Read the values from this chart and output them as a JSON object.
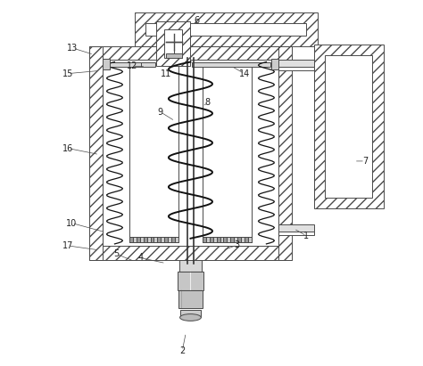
{
  "bg_color": "#ffffff",
  "line_color": "#4a4a4a",
  "figsize": [
    4.74,
    4.11
  ],
  "dpi": 100,
  "hatch": "///",
  "lw": 0.7,
  "label_fs": 7,
  "label_color": "#222222",
  "labels_info": {
    "1": [
      0.76,
      0.355,
      0.725,
      0.375
    ],
    "2": [
      0.42,
      0.04,
      0.43,
      0.09
    ],
    "3": [
      0.57,
      0.33,
      0.53,
      0.315
    ],
    "4": [
      0.305,
      0.295,
      0.375,
      0.28
    ],
    "5": [
      0.24,
      0.305,
      0.29,
      0.285
    ],
    "6": [
      0.46,
      0.945,
      0.46,
      0.93
    ],
    "7": [
      0.92,
      0.56,
      0.89,
      0.56
    ],
    "8": [
      0.49,
      0.72,
      0.475,
      0.71
    ],
    "9": [
      0.36,
      0.695,
      0.4,
      0.67
    ],
    "10": [
      0.118,
      0.39,
      0.21,
      0.365
    ],
    "11": [
      0.375,
      0.8,
      0.385,
      0.82
    ],
    "12": [
      0.283,
      0.82,
      0.32,
      0.82
    ],
    "13": [
      0.12,
      0.87,
      0.178,
      0.852
    ],
    "14": [
      0.59,
      0.8,
      0.555,
      0.82
    ],
    "15": [
      0.107,
      0.8,
      0.195,
      0.808
    ],
    "16": [
      0.108,
      0.595,
      0.193,
      0.578
    ],
    "17": [
      0.108,
      0.328,
      0.193,
      0.316
    ]
  }
}
